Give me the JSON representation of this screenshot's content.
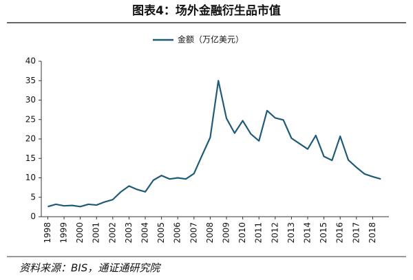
{
  "chart_data": {
    "type": "line",
    "title": "图表4：场外金融衍生品市值",
    "source": "资料来源：BIS，通证通研究院",
    "x": [
      1998,
      1998.5,
      1999,
      1999.5,
      2000,
      2000.5,
      2001,
      2001.5,
      2002,
      2002.5,
      2003,
      2003.5,
      2004,
      2004.5,
      2005,
      2005.5,
      2006,
      2006.5,
      2007,
      2007.5,
      2008,
      2008.5,
      2009,
      2009.5,
      2010,
      2010.5,
      2011,
      2011.5,
      2012,
      2012.5,
      2013,
      2013.5,
      2014,
      2014.5,
      2015,
      2015.5,
      2016,
      2016.5,
      2017,
      2017.5,
      2018,
      2018.5
    ],
    "series": [
      {
        "name": "金额（万亿美元）",
        "color": "#1f5a78",
        "values": [
          2.6,
          3.2,
          2.8,
          2.9,
          2.6,
          3.2,
          3.0,
          3.8,
          4.4,
          6.4,
          7.9,
          7.0,
          6.4,
          9.4,
          10.6,
          9.7,
          10.0,
          9.7,
          11.1,
          15.8,
          20.4,
          35.0,
          25.3,
          21.5,
          24.7,
          21.3,
          19.5,
          27.3,
          25.4,
          24.9,
          20.2,
          18.8,
          17.4,
          20.9,
          15.5,
          14.5,
          20.7,
          14.6,
          12.7,
          11.0,
          10.3,
          9.7
        ]
      }
    ],
    "xlim": [
      1997.6,
      2019.0
    ],
    "xticks": [
      1998,
      1999,
      2000,
      2001,
      2002,
      2003,
      2004,
      2005,
      2006,
      2007,
      2008,
      2009,
      2010,
      2011,
      2012,
      2013,
      2014,
      2015,
      2016,
      2017,
      2018
    ],
    "ylim": [
      0,
      40
    ],
    "yticks": [
      0,
      5,
      10,
      15,
      20,
      25,
      30,
      35,
      40
    ],
    "legend": "top"
  }
}
